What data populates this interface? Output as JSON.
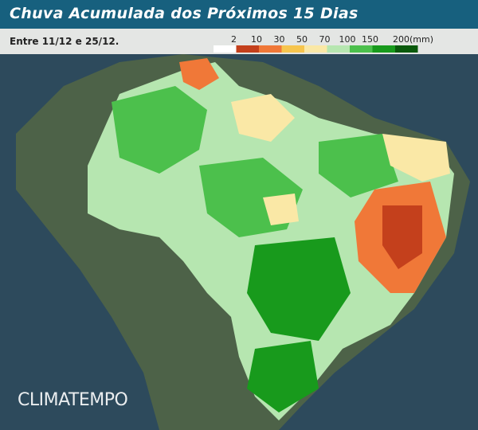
{
  "header": {
    "title": "Chuva Acumulada dos Próximos 15 Dias",
    "subtitle": "Entre 11/12 e 25/12."
  },
  "legend": {
    "labels": [
      "2",
      "10",
      "30",
      "50",
      "70",
      "100",
      "150",
      "200(mm)"
    ],
    "colors": [
      "#ffffff",
      "#c4401c",
      "#f07838",
      "#f6c54e",
      "#fae8a6",
      "#b6e6b0",
      "#4cc04c",
      "#189a1c",
      "#0a5a0c"
    ]
  },
  "brand": "CLIMATEMPO"
}
